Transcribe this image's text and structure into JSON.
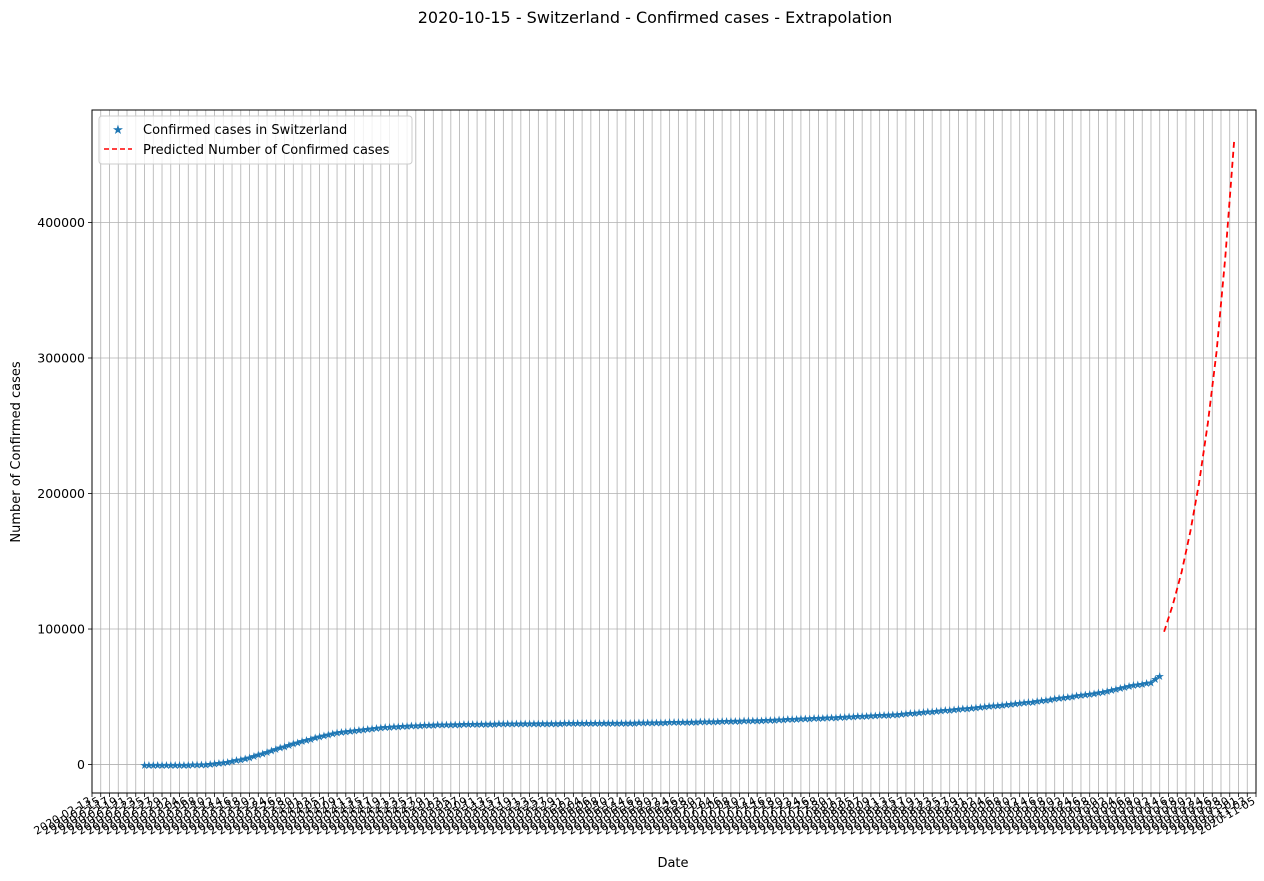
{
  "chart_data": {
    "type": "line",
    "title": "2020-10-15 - Switzerland - Confirmed cases - Extrapolation",
    "xlabel": "Date",
    "ylabel": "Number of Confirmed cases",
    "ylim": [
      -21000,
      483000
    ],
    "yticks": [
      0,
      100000,
      200000,
      300000,
      400000
    ],
    "ytick_labels": [
      "0",
      "100000",
      "200000",
      "300000",
      "400000"
    ],
    "x_first_date": "2020-02-13",
    "x_last_date": "2020-11-05",
    "x_range": [
      "2020-02-13",
      "2020-11-05"
    ],
    "grid": true,
    "legend_position": "top-left",
    "series": [
      {
        "name": "Confirmed cases in Switzerland",
        "style": "star-markers",
        "color": "#1f77b4",
        "points": [
          [
            "2020-02-25",
            1
          ],
          [
            "2020-03-01",
            27
          ],
          [
            "2020-03-05",
            90
          ],
          [
            "2020-03-10",
            491
          ],
          [
            "2020-03-15",
            2200
          ],
          [
            "2020-03-20",
            5615
          ],
          [
            "2020-03-25",
            10714
          ],
          [
            "2020-03-30",
            15922
          ],
          [
            "2020-04-05",
            21100
          ],
          [
            "2020-04-10",
            24551
          ],
          [
            "2020-04-15",
            26336
          ],
          [
            "2020-04-20",
            27944
          ],
          [
            "2020-04-25",
            28894
          ],
          [
            "2020-05-01",
            29705
          ],
          [
            "2020-05-10",
            30251
          ],
          [
            "2020-05-20",
            30618
          ],
          [
            "2020-06-01",
            30874
          ],
          [
            "2020-06-15",
            31117
          ],
          [
            "2020-07-01",
            31967
          ],
          [
            "2020-07-15",
            33016
          ],
          [
            "2020-08-01",
            35232
          ],
          [
            "2020-08-15",
            37403
          ],
          [
            "2020-09-01",
            42177
          ],
          [
            "2020-09-15",
            46704
          ],
          [
            "2020-10-01",
            53832
          ],
          [
            "2020-10-08",
            58881
          ],
          [
            "2020-10-12",
            61000
          ],
          [
            "2020-10-14",
            65881
          ]
        ]
      },
      {
        "name": "Predicted Number of Confirmed cases",
        "style": "dashed-line",
        "color": "#ff0000",
        "points": [
          [
            "2020-10-15",
            98000
          ],
          [
            "2020-10-17",
            118000
          ],
          [
            "2020-10-19",
            142000
          ],
          [
            "2020-10-21",
            172000
          ],
          [
            "2020-10-23",
            208000
          ],
          [
            "2020-10-25",
            252000
          ],
          [
            "2020-10-27",
            305000
          ],
          [
            "2020-10-29",
            375000
          ],
          [
            "2020-10-31",
            460000
          ]
        ]
      }
    ]
  }
}
